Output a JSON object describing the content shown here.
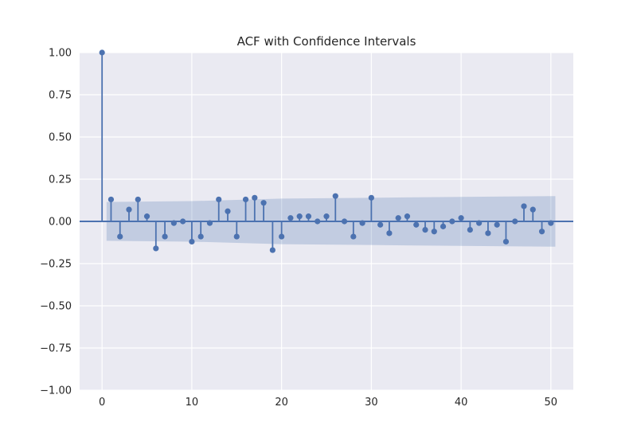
{
  "chart_data": {
    "type": "scatter",
    "title": "ACF with Confidence Intervals",
    "xlabel": "",
    "ylabel": "",
    "xlim": [
      -2.5,
      52.5
    ],
    "ylim": [
      -1.0,
      1.0
    ],
    "x_ticks": [
      "0",
      "10",
      "20",
      "30",
      "40",
      "50"
    ],
    "y_ticks": [
      "1.00",
      "0.75",
      "0.50",
      "0.25",
      "0.00",
      "−0.25",
      "−0.50",
      "−0.75",
      "−1.00"
    ],
    "grid": true,
    "lags": [
      0,
      1,
      2,
      3,
      4,
      5,
      6,
      7,
      8,
      9,
      10,
      11,
      12,
      13,
      14,
      15,
      16,
      17,
      18,
      19,
      20,
      21,
      22,
      23,
      24,
      25,
      26,
      27,
      28,
      29,
      30,
      31,
      32,
      33,
      34,
      35,
      36,
      37,
      38,
      39,
      40,
      41,
      42,
      43,
      44,
      45,
      46,
      47,
      48,
      49,
      50
    ],
    "acf": [
      1.0,
      0.13,
      -0.09,
      0.07,
      0.13,
      0.03,
      -0.16,
      -0.09,
      -0.01,
      0.0,
      -0.12,
      -0.09,
      -0.01,
      0.13,
      0.06,
      -0.09,
      0.13,
      0.14,
      0.11,
      -0.17,
      -0.09,
      0.02,
      0.03,
      0.03,
      0.0,
      0.03,
      0.15,
      0.0,
      -0.09,
      -0.01,
      0.14,
      -0.02,
      -0.07,
      0.02,
      0.03,
      -0.02,
      -0.05,
      -0.06,
      -0.03,
      0.0,
      0.02,
      -0.05,
      -0.01,
      -0.07,
      -0.02,
      -0.12,
      0.0,
      0.09,
      0.07,
      -0.06,
      -0.01
    ],
    "confint_lags": [
      0.5,
      10,
      20,
      30,
      40,
      50.5
    ],
    "confint_upper": [
      0.115,
      0.12,
      0.135,
      0.14,
      0.145,
      0.15
    ],
    "colors": {
      "stem": "#4c72b0",
      "band": "#4c72b0",
      "plot_background": "#eaeaf2",
      "grid": "#ffffff",
      "text": "#262626"
    }
  }
}
